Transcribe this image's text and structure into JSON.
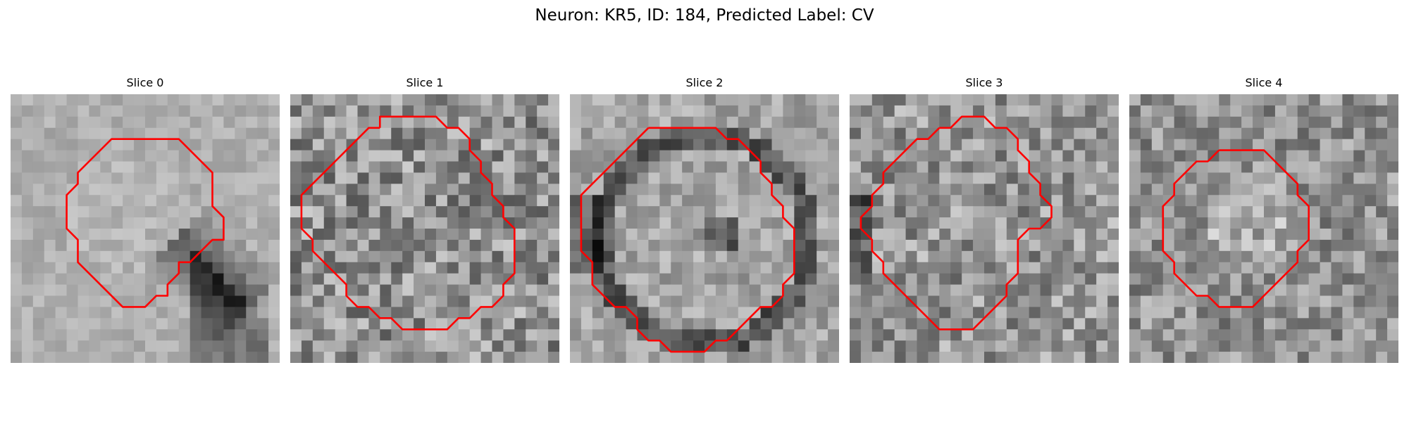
{
  "figure": {
    "title": "Neuron: KR5, ID: 184, Predicted Label: CV"
  },
  "contour_color": "#ff0000",
  "colormap": "grayscale",
  "panels": [
    {
      "title": "Slice 0",
      "contour": [
        [
          10,
          4
        ],
        [
          15,
          4
        ],
        [
          18,
          7
        ],
        [
          18,
          10
        ],
        [
          19,
          11
        ],
        [
          19,
          13
        ],
        [
          18,
          13
        ],
        [
          17,
          14
        ],
        [
          16,
          15
        ],
        [
          15,
          15
        ],
        [
          15,
          16
        ],
        [
          14,
          17
        ],
        [
          14,
          18
        ],
        [
          13,
          18
        ],
        [
          12,
          19
        ],
        [
          10,
          19
        ],
        [
          7,
          16
        ],
        [
          6,
          15
        ],
        [
          6,
          13
        ],
        [
          5,
          12
        ],
        [
          5,
          9
        ],
        [
          6,
          8
        ],
        [
          6,
          7
        ],
        [
          9,
          4
        ]
      ]
    },
    {
      "title": "Slice 1",
      "contour": [
        [
          8,
          3
        ],
        [
          8,
          2
        ],
        [
          13,
          2
        ],
        [
          14,
          3
        ],
        [
          15,
          3
        ],
        [
          16,
          4
        ],
        [
          16,
          5
        ],
        [
          17,
          6
        ],
        [
          17,
          7
        ],
        [
          18,
          8
        ],
        [
          18,
          9
        ],
        [
          19,
          10
        ],
        [
          19,
          11
        ],
        [
          20,
          12
        ],
        [
          20,
          16
        ],
        [
          19,
          17
        ],
        [
          19,
          18
        ],
        [
          18,
          19
        ],
        [
          17,
          19
        ],
        [
          16,
          20
        ],
        [
          15,
          20
        ],
        [
          14,
          21
        ],
        [
          10,
          21
        ],
        [
          9,
          20
        ],
        [
          8,
          20
        ],
        [
          7,
          19
        ],
        [
          6,
          19
        ],
        [
          5,
          18
        ],
        [
          5,
          17
        ],
        [
          4,
          16
        ],
        [
          3,
          15
        ],
        [
          2,
          14
        ],
        [
          2,
          13
        ],
        [
          1,
          12
        ],
        [
          1,
          9
        ],
        [
          2,
          8
        ],
        [
          3,
          7
        ],
        [
          4,
          6
        ],
        [
          5,
          5
        ],
        [
          6,
          4
        ],
        [
          7,
          3
        ]
      ]
    },
    {
      "title": "Slice 2",
      "contour": [
        [
          7,
          3
        ],
        [
          13,
          3
        ],
        [
          14,
          4
        ],
        [
          15,
          4
        ],
        [
          16,
          5
        ],
        [
          17,
          6
        ],
        [
          17,
          7
        ],
        [
          18,
          8
        ],
        [
          18,
          9
        ],
        [
          19,
          10
        ],
        [
          19,
          11
        ],
        [
          20,
          12
        ],
        [
          20,
          16
        ],
        [
          19,
          17
        ],
        [
          19,
          18
        ],
        [
          18,
          19
        ],
        [
          17,
          19
        ],
        [
          16,
          20
        ],
        [
          15,
          21
        ],
        [
          14,
          22
        ],
        [
          13,
          22
        ],
        [
          12,
          23
        ],
        [
          9,
          23
        ],
        [
          8,
          22
        ],
        [
          7,
          22
        ],
        [
          6,
          21
        ],
        [
          6,
          20
        ],
        [
          5,
          19
        ],
        [
          4,
          19
        ],
        [
          3,
          18
        ],
        [
          2,
          17
        ],
        [
          2,
          15
        ],
        [
          1,
          14
        ],
        [
          1,
          9
        ],
        [
          2,
          8
        ],
        [
          3,
          7
        ],
        [
          4,
          6
        ],
        [
          5,
          5
        ],
        [
          6,
          4
        ]
      ]
    },
    {
      "title": "Slice 3",
      "contour": [
        [
          8,
          3
        ],
        [
          9,
          3
        ],
        [
          10,
          2
        ],
        [
          12,
          2
        ],
        [
          13,
          3
        ],
        [
          14,
          3
        ],
        [
          15,
          4
        ],
        [
          15,
          5
        ],
        [
          16,
          6
        ],
        [
          16,
          7
        ],
        [
          17,
          8
        ],
        [
          17,
          9
        ],
        [
          18,
          10
        ],
        [
          18,
          11
        ],
        [
          17,
          12
        ],
        [
          16,
          12
        ],
        [
          15,
          13
        ],
        [
          15,
          16
        ],
        [
          14,
          17
        ],
        [
          14,
          18
        ],
        [
          13,
          19
        ],
        [
          12,
          20
        ],
        [
          11,
          21
        ],
        [
          8,
          21
        ],
        [
          7,
          20
        ],
        [
          6,
          19
        ],
        [
          5,
          18
        ],
        [
          4,
          17
        ],
        [
          3,
          16
        ],
        [
          3,
          15
        ],
        [
          2,
          14
        ],
        [
          2,
          13
        ],
        [
          1,
          12
        ],
        [
          1,
          11
        ],
        [
          2,
          10
        ],
        [
          2,
          9
        ],
        [
          3,
          8
        ],
        [
          3,
          7
        ],
        [
          4,
          6
        ],
        [
          5,
          5
        ],
        [
          6,
          4
        ],
        [
          7,
          4
        ]
      ]
    },
    {
      "title": "Slice 4",
      "contour": [
        [
          8,
          5
        ],
        [
          12,
          5
        ],
        [
          13,
          6
        ],
        [
          14,
          7
        ],
        [
          15,
          8
        ],
        [
          15,
          9
        ],
        [
          16,
          10
        ],
        [
          16,
          13
        ],
        [
          15,
          14
        ],
        [
          15,
          15
        ],
        [
          14,
          16
        ],
        [
          13,
          17
        ],
        [
          12,
          18
        ],
        [
          11,
          19
        ],
        [
          8,
          19
        ],
        [
          7,
          18
        ],
        [
          6,
          18
        ],
        [
          5,
          17
        ],
        [
          4,
          16
        ],
        [
          4,
          15
        ],
        [
          3,
          14
        ],
        [
          3,
          10
        ],
        [
          4,
          9
        ],
        [
          4,
          8
        ],
        [
          5,
          7
        ],
        [
          6,
          6
        ],
        [
          7,
          6
        ]
      ]
    }
  ]
}
